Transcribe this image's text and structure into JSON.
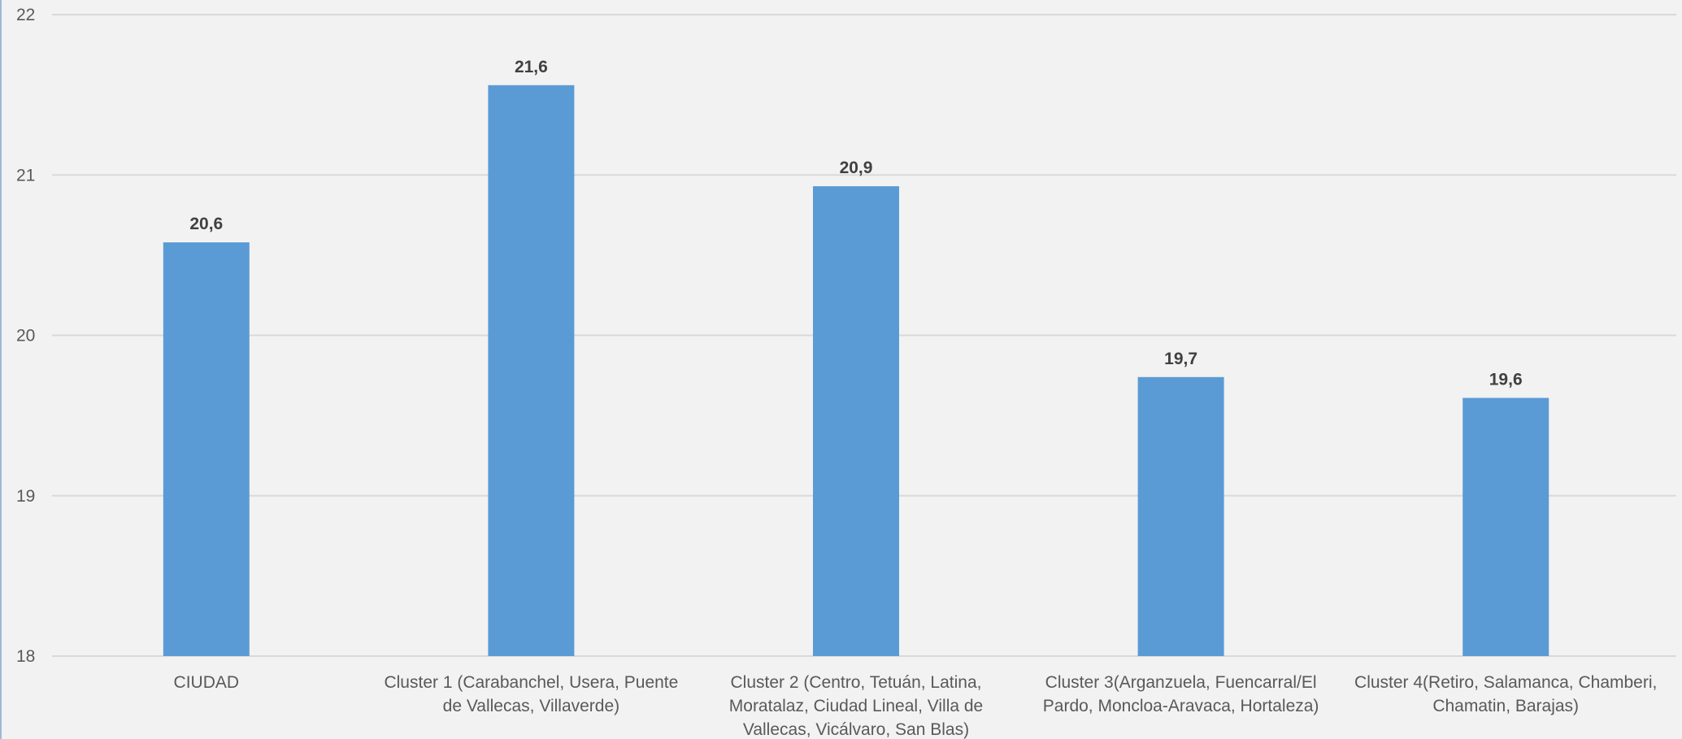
{
  "chart_data": {
    "type": "bar",
    "title": "",
    "xlabel": "",
    "ylabel": "",
    "ylim": [
      18,
      22
    ],
    "y_ticks": [
      "18",
      "19",
      "20",
      "21",
      "22"
    ],
    "grid": true,
    "legend": "none",
    "bar_color": "#5b9bd5",
    "gridline_color": "#d9d9d9",
    "categories": [
      "CIUDAD",
      "Cluster 1 (Carabanchel, Usera, Puente de Vallecas, Villaverde)",
      "Cluster 2 (Centro, Tetuán, Latina, Moratalaz, Ciudad Lineal, Villa de Vallecas, Vicálvaro, San Blas)",
      "Cluster 3(Arganzuela, Fuencarral/El Pardo, Moncloa-Aravaca, Hortaleza)",
      "Cluster 4(Retiro, Salamanca, Chamberi, Chamatin, Barajas)"
    ],
    "category_label_lines": [
      [
        "CIUDAD"
      ],
      [
        "Cluster 1 (Carabanchel, Usera, Puente",
        "de Vallecas, Villaverde)"
      ],
      [
        "Cluster 2 (Centro, Tetuán, Latina,",
        "Moratalaz, Ciudad Lineal, Villa de",
        "Vallecas, Vicálvaro, San Blas)"
      ],
      [
        "Cluster 3(Arganzuela, Fuencarral/El",
        "Pardo, Moncloa-Aravaca, Hortaleza)"
      ],
      [
        "Cluster 4(Retiro, Salamanca, Chamberi,",
        "Chamatin, Barajas)"
      ]
    ],
    "values": [
      20.58,
      21.56,
      20.93,
      19.74,
      19.61
    ],
    "data_labels": [
      "20,6",
      "21,6",
      "20,9",
      "19,7",
      "19,6"
    ]
  }
}
